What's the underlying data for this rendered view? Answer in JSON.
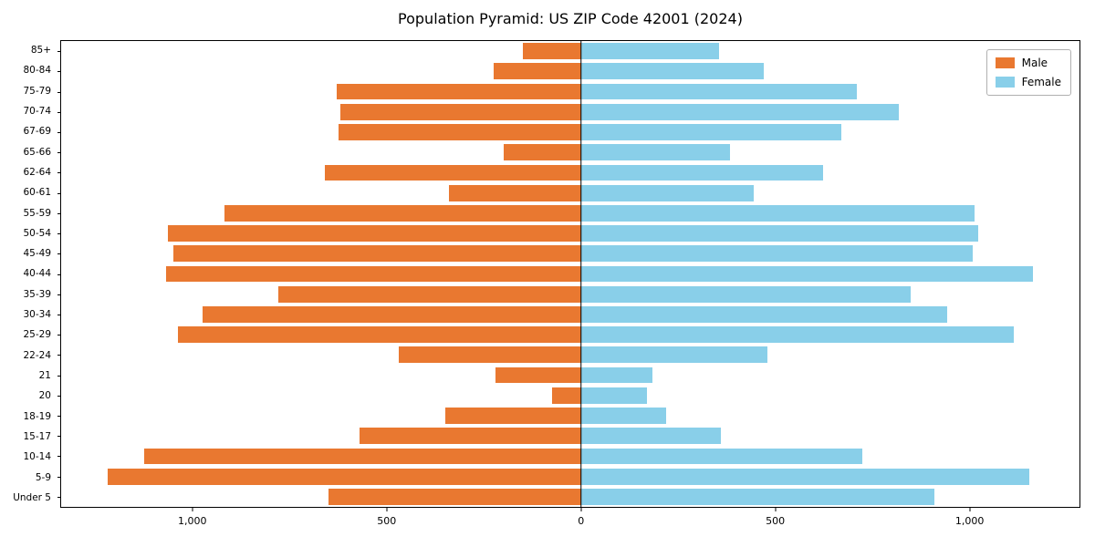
{
  "chart_data": {
    "type": "bar",
    "subtype": "population-pyramid",
    "orientation": "horizontal",
    "title": "Population Pyramid: US ZIP Code 42001 (2024)",
    "xlabel": "",
    "ylabel": "",
    "grid": false,
    "xlim": [
      -1340,
      1285
    ],
    "categories_top_to_bottom": [
      "85+",
      "80-84",
      "75-79",
      "70-74",
      "67-69",
      "65-66",
      "62-64",
      "60-61",
      "55-59",
      "50-54",
      "45-49",
      "40-44",
      "35-39",
      "30-34",
      "25-29",
      "22-24",
      "21",
      "20",
      "18-19",
      "15-17",
      "10-14",
      "5-9",
      "Under 5"
    ],
    "series": [
      {
        "name": "Male",
        "side": "left",
        "color": "#e97830",
        "values": [
          150,
          225,
          630,
          620,
          625,
          200,
          660,
          340,
          920,
          1065,
          1050,
          1070,
          780,
          975,
          1040,
          470,
          220,
          75,
          350,
          570,
          1125,
          1220,
          650
        ]
      },
      {
        "name": "Female",
        "side": "right",
        "color": "#89cfe9",
        "values": [
          355,
          470,
          710,
          820,
          670,
          385,
          625,
          445,
          1015,
          1025,
          1010,
          1165,
          850,
          945,
          1115,
          480,
          185,
          170,
          220,
          360,
          725,
          1155,
          910
        ]
      }
    ],
    "x_ticks": [
      {
        "value": -1000,
        "label": "1,000"
      },
      {
        "value": -500,
        "label": "500"
      },
      {
        "value": 0,
        "label": "0"
      },
      {
        "value": 500,
        "label": "500"
      },
      {
        "value": 1000,
        "label": "1,000"
      }
    ],
    "zero_line_color": "#000000",
    "legend": {
      "position": "top-right"
    }
  }
}
